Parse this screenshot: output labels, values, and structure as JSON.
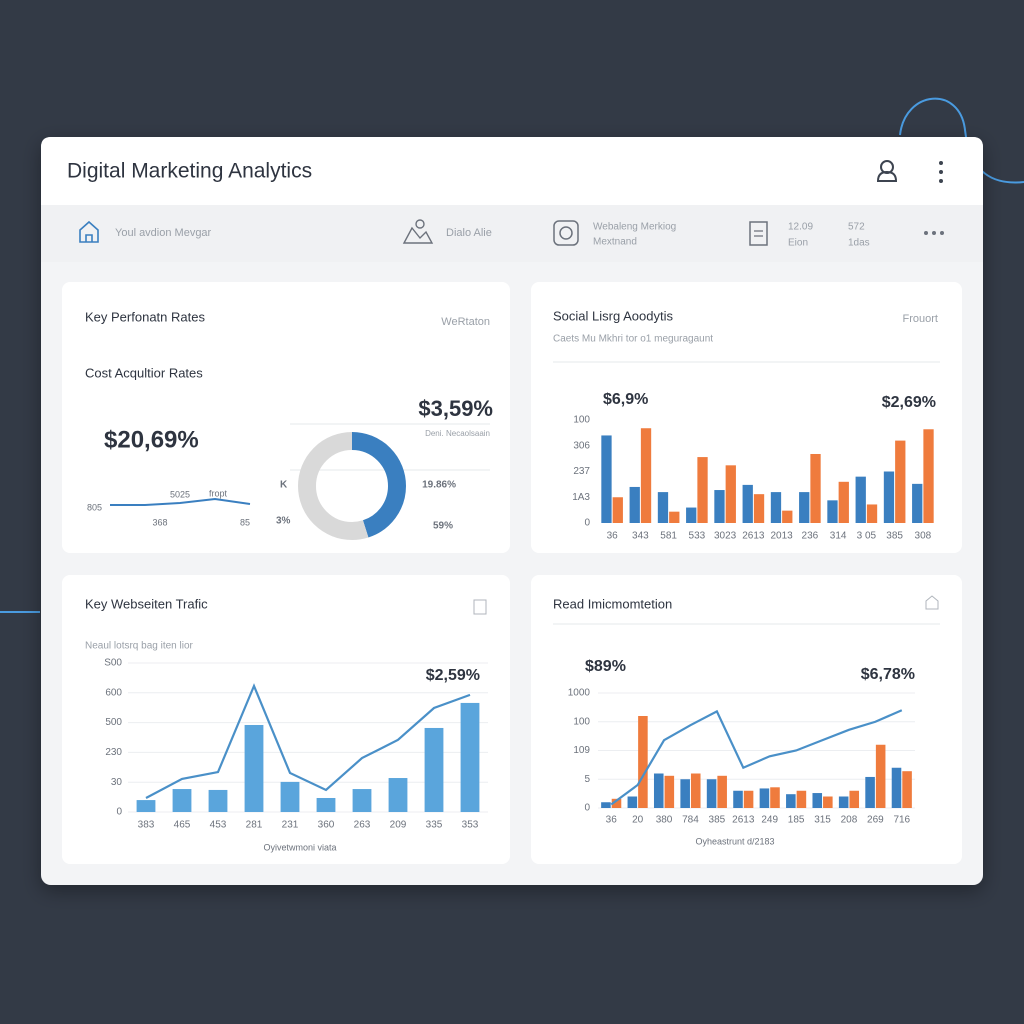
{
  "header": {
    "title": "Digital Marketing Analytics"
  },
  "nav": [
    {
      "label": "Youl avdion Mevgar"
    },
    {
      "label": "Dialo Alie"
    },
    {
      "label": "Webaleng Merkiog",
      "sublabel": "Mextnand"
    },
    {
      "label": "12.09",
      "sublabel": "Eion"
    },
    {
      "label": "572",
      "sublabel": "1das"
    }
  ],
  "panels": [
    {
      "title": "Key Perfonatn Rates",
      "action": "WeRtaton",
      "subtitle": "Cost Acqultior Rates",
      "headline": "$20,69%",
      "sparkline": {
        "values": [
          10,
          10,
          12,
          16,
          11
        ],
        "ylim": [
          0,
          20
        ],
        "color": "#3a7fc0",
        "labels": [
          "805",
          "5025",
          "fropt",
          "368",
          "85"
        ]
      },
      "donut": {
        "headline": "$3,59%",
        "caption": "Deni. Necaolsaain",
        "segments": [
          {
            "value": 45,
            "color": "#3a7fc0"
          },
          {
            "value": 55,
            "color": "#d9d9d9"
          }
        ],
        "labels": [
          "K",
          "3%",
          "19.86%",
          "59%"
        ]
      }
    },
    {
      "type": "bar",
      "title": "Social Lisrg Aoodytis",
      "action": "Frouort",
      "subtitle": "Caets Mu Mkhri tor o1 meguragaunt",
      "annotations": [
        "$6,9%",
        "$2,69%"
      ],
      "categories": [
        "36",
        "343",
        "581",
        "533",
        "3023",
        "2613",
        "2013",
        "236",
        "314",
        "3 05",
        "385",
        "308"
      ],
      "series": [
        {
          "mark": "bar",
          "color": "#3a7fc0",
          "values": [
            85,
            35,
            30,
            15,
            32,
            37,
            30,
            30,
            22,
            45,
            50,
            38
          ]
        },
        {
          "mark": "bar",
          "color": "#ef7b3d",
          "values": [
            25,
            92,
            11,
            64,
            56,
            28,
            12,
            67,
            40,
            18,
            80,
            91
          ]
        }
      ],
      "ylim": [
        0,
        100
      ],
      "yticks": [
        0,
        {
          "value": 25,
          "label": "1A3"
        },
        {
          "value": 50,
          "label": "237"
        },
        {
          "value": 75,
          "label": "306"
        },
        100
      ],
      "grid": false
    },
    {
      "type": "combo",
      "title": "Key Webseiten Trafic",
      "subtitle": "Neaul lotsrq bag iten lior",
      "annotations": [
        "$2,59%"
      ],
      "xlabel": "Oyivetwmoni viata",
      "categories": [
        "383",
        "465",
        "453",
        "281",
        "231",
        "360",
        "263",
        "209",
        "335",
        "353"
      ],
      "series": [
        {
          "mark": "bar",
          "color": "#5aa5dc",
          "values": [
            40,
            77,
            74,
            292,
            101,
            47,
            77,
            114,
            282,
            366
          ]
        },
        {
          "mark": "line",
          "color": "#4a90c8",
          "values": [
            47,
            111,
            134,
            423,
            131,
            74,
            181,
            242,
            349,
            393
          ]
        }
      ],
      "ylim": [
        0,
        500
      ],
      "yticks": [
        0,
        {
          "value": 100,
          "label": "30"
        },
        {
          "value": 200,
          "label": "230"
        },
        {
          "value": 300,
          "label": "500"
        },
        {
          "value": 400,
          "label": "600"
        },
        {
          "value": 500,
          "label": "S00"
        }
      ],
      "grid": true
    },
    {
      "type": "combo",
      "title": "Read Imicmomtetion",
      "annotations": [
        "$89%",
        "$6,78%"
      ],
      "xlabel": "Oyheastrunt d/2183",
      "categories": [
        "36",
        "20",
        "380",
        "784",
        "385",
        "2613",
        "249",
        "185",
        "315",
        "208",
        "269",
        "716"
      ],
      "series": [
        {
          "mark": "bar",
          "color": "#3a7fc0",
          "values": [
            5,
            10,
            30,
            25,
            25,
            15,
            17,
            12,
            13,
            10,
            27,
            35
          ]
        },
        {
          "mark": "bar",
          "color": "#ef7b3d",
          "values": [
            8,
            80,
            28,
            30,
            28,
            15,
            18,
            15,
            10,
            15,
            55,
            32
          ]
        },
        {
          "mark": "line",
          "color": "#4a90c8",
          "values": [
            3,
            20,
            59,
            72,
            84,
            35,
            45,
            50,
            59,
            68,
            75,
            85
          ]
        }
      ],
      "ylim": [
        0,
        100
      ],
      "yticks": [
        0,
        {
          "value": 25,
          "label": "5"
        },
        {
          "value": 50,
          "label": "109"
        },
        {
          "value": 75,
          "label": "100"
        },
        {
          "value": 100,
          "label": "1000"
        }
      ],
      "grid": true
    }
  ]
}
